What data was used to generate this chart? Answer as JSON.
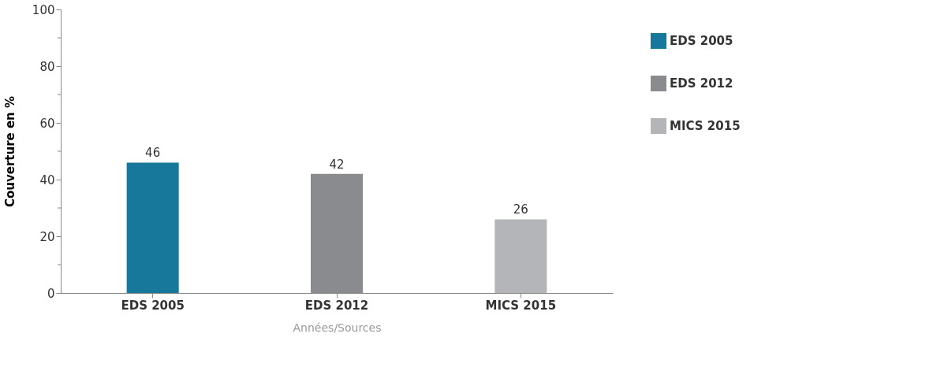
{
  "chart_data": {
    "type": "bar",
    "categories": [
      "EDS 2005",
      "EDS 2012",
      "MICS 2015"
    ],
    "series": [
      {
        "name": "EDS 2005",
        "color": "#17789c",
        "values": [
          46,
          null,
          null
        ]
      },
      {
        "name": "EDS 2012",
        "color": "#8a8b8f",
        "values": [
          null,
          42,
          null
        ]
      },
      {
        "name": "MICS 2015",
        "color": "#b4b5b9",
        "values": [
          null,
          null,
          26
        ]
      }
    ],
    "xlabel": "Années/Sources",
    "ylabel": "Couverture en %",
    "ylim": [
      0,
      100
    ],
    "yticks": [
      0,
      {
        "value": 10,
        "label": null
      },
      20,
      {
        "value": 30,
        "label": null
      },
      40,
      {
        "value": 50,
        "label": null
      },
      60,
      {
        "value": 70,
        "label": null
      },
      80,
      {
        "value": 90,
        "label": null
      },
      100
    ],
    "data_labels": true,
    "legend": "right",
    "grid": false
  }
}
